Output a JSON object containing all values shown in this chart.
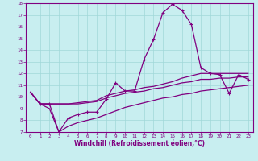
{
  "xlabel": "Windchill (Refroidissement éolien,°C)",
  "xlim": [
    -0.5,
    23.5
  ],
  "ylim": [
    7,
    18
  ],
  "xticks": [
    0,
    1,
    2,
    3,
    4,
    5,
    6,
    7,
    8,
    9,
    10,
    11,
    12,
    13,
    14,
    15,
    16,
    17,
    18,
    19,
    20,
    21,
    22,
    23
  ],
  "yticks": [
    7,
    8,
    9,
    10,
    11,
    12,
    13,
    14,
    15,
    16,
    17,
    18
  ],
  "bg_color": "#c8eef0",
  "line_color": "#800080",
  "grid_color": "#a0d8d8",
  "series": {
    "line1": {
      "x": [
        0,
        1,
        2,
        3,
        4,
        5,
        6,
        7,
        8,
        9,
        10,
        11,
        12,
        13,
        14,
        15,
        16,
        17,
        18,
        19,
        20,
        21,
        22,
        23
      ],
      "y": [
        10.4,
        9.4,
        9.4,
        7.0,
        8.2,
        8.5,
        8.7,
        8.7,
        9.8,
        11.2,
        10.5,
        10.5,
        13.2,
        14.9,
        17.2,
        17.9,
        17.4,
        16.2,
        12.5,
        12.0,
        11.9,
        10.3,
        11.9,
        11.5
      ]
    },
    "line2": {
      "x": [
        0,
        1,
        2,
        3,
        4,
        5,
        6,
        7,
        8,
        9,
        10,
        11,
        12,
        13,
        14,
        15,
        16,
        17,
        18,
        19,
        20,
        21,
        22,
        23
      ],
      "y": [
        10.4,
        9.4,
        9.4,
        9.4,
        9.4,
        9.5,
        9.6,
        9.7,
        10.1,
        10.3,
        10.5,
        10.6,
        10.8,
        10.9,
        11.1,
        11.3,
        11.6,
        11.8,
        12.0,
        12.0,
        12.0,
        12.0,
        12.0,
        12.0
      ]
    },
    "line3": {
      "x": [
        0,
        1,
        2,
        3,
        4,
        5,
        6,
        7,
        8,
        9,
        10,
        11,
        12,
        13,
        14,
        15,
        16,
        17,
        18,
        19,
        20,
        21,
        22,
        23
      ],
      "y": [
        10.4,
        9.4,
        9.4,
        9.4,
        9.4,
        9.4,
        9.5,
        9.6,
        9.9,
        10.1,
        10.3,
        10.4,
        10.5,
        10.7,
        10.8,
        11.0,
        11.2,
        11.3,
        11.5,
        11.5,
        11.6,
        11.6,
        11.7,
        11.7
      ]
    },
    "line4": {
      "x": [
        0,
        1,
        2,
        3,
        4,
        5,
        6,
        7,
        8,
        9,
        10,
        11,
        12,
        13,
        14,
        15,
        16,
        17,
        18,
        19,
        20,
        21,
        22,
        23
      ],
      "y": [
        10.4,
        9.4,
        9.0,
        7.0,
        7.5,
        7.8,
        8.0,
        8.2,
        8.5,
        8.8,
        9.1,
        9.3,
        9.5,
        9.7,
        9.9,
        10.0,
        10.2,
        10.3,
        10.5,
        10.6,
        10.7,
        10.8,
        10.9,
        11.0
      ]
    }
  }
}
